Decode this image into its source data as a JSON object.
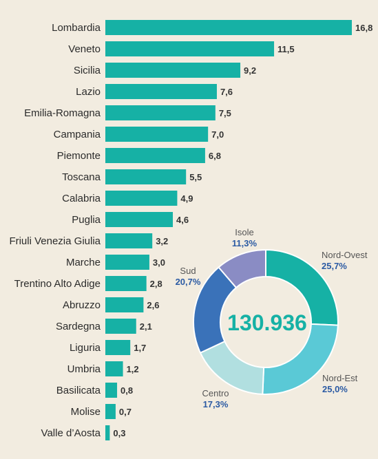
{
  "chart_data": [
    {
      "type": "bar",
      "orientation": "horizontal",
      "categories": [
        "Lombardia",
        "Veneto",
        "Sicilia",
        "Lazio",
        "Emilia-Romagna",
        "Campania",
        "Piemonte",
        "Toscana",
        "Calabria",
        "Puglia",
        "Friuli Venezia Giulia",
        "Marche",
        "Trentino Alto Adige",
        "Abruzzo",
        "Sardegna",
        "Liguria",
        "Umbria",
        "Basilicata",
        "Molise",
        "Valle d’Aosta"
      ],
      "values": [
        16.8,
        11.5,
        9.2,
        7.6,
        7.5,
        7.0,
        6.8,
        5.5,
        4.9,
        4.6,
        3.2,
        3.0,
        2.8,
        2.6,
        2.1,
        1.7,
        1.2,
        0.8,
        0.7,
        0.3
      ],
      "value_labels": [
        "16,8",
        "11,5",
        "9,2",
        "7,6",
        "7,5",
        "7,0",
        "6,8",
        "5,5",
        "4,9",
        "4,6",
        "3,2",
        "3,0",
        "2,8",
        "2,6",
        "2,1",
        "1,7",
        "1,2",
        "0,8",
        "0,7",
        "0,3"
      ],
      "bar_color": "#16b1a5",
      "grid": false
    },
    {
      "type": "pie",
      "donut": true,
      "center_label": "130.936",
      "segments": [
        {
          "name": "Nord-Ovest",
          "value": 25.7,
          "label": "25,7%",
          "color": "#16b1a5"
        },
        {
          "name": "Nord-Est",
          "value": 25.0,
          "label": "25,0%",
          "color": "#5ac9d6"
        },
        {
          "name": "Centro",
          "value": 17.3,
          "label": "17,3%",
          "color": "#b1dfe0"
        },
        {
          "name": "Sud",
          "value": 20.7,
          "label": "20,7%",
          "color": "#3a72b9"
        },
        {
          "name": "Isole",
          "value": 11.3,
          "label": "11,3%",
          "color": "#8a8cc4"
        }
      ]
    }
  ],
  "colors": {
    "background": "#f2ece0",
    "center_text": "#16b1a5",
    "percent_text": "#2b5aa3"
  }
}
